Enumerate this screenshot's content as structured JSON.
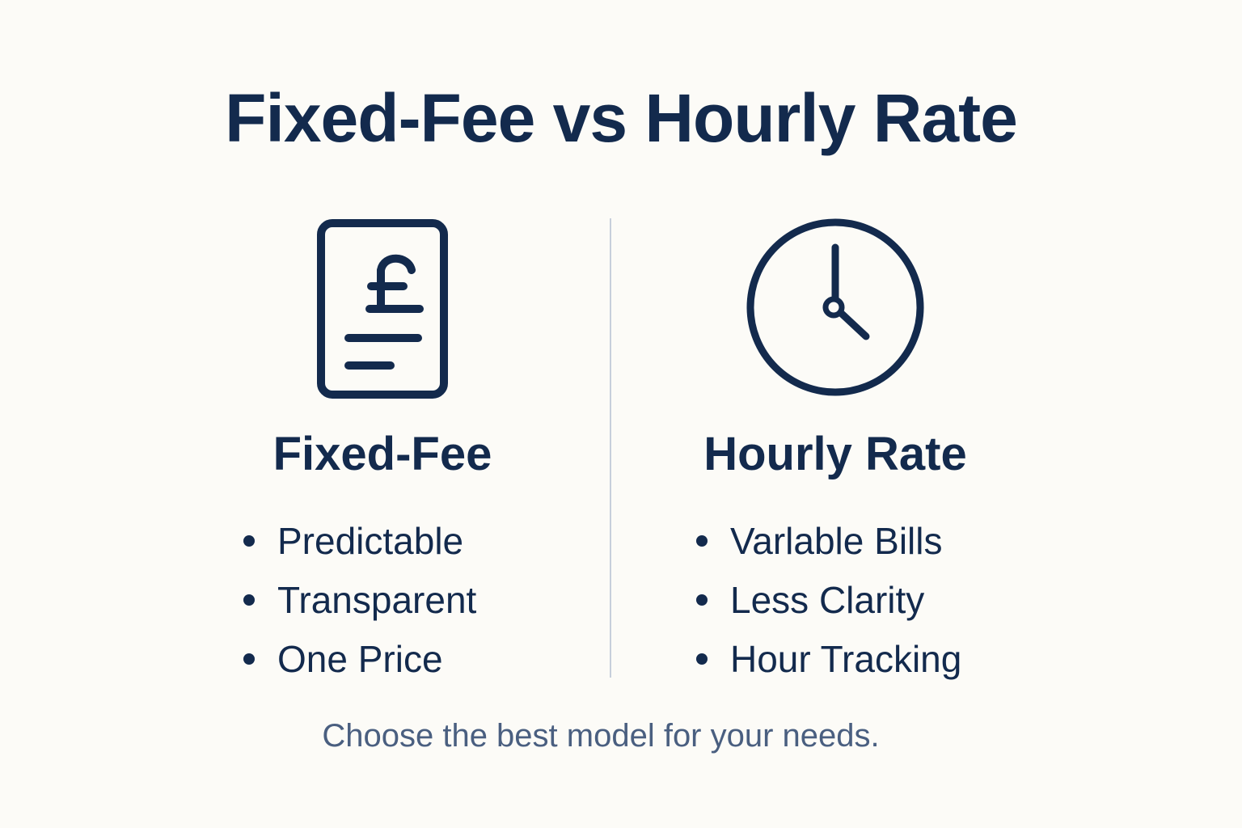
{
  "title": "Fixed-Fee vs Hourly Rate",
  "colors": {
    "primary": "#132a4d",
    "divider": "#c7cfdb",
    "footer": "#4a5f80",
    "background": "#fcfbf7"
  },
  "left": {
    "icon": "pound-invoice-icon",
    "heading": "Fixed-Fee",
    "items": [
      "Predictable",
      "Transparent",
      "One Price"
    ]
  },
  "right": {
    "icon": "clock-icon",
    "heading": "Hourly Rate",
    "items": [
      "Varlable Bills",
      "Less Clarity",
      "Hour Tracking"
    ]
  },
  "footer": "Choose the best model for your needs."
}
